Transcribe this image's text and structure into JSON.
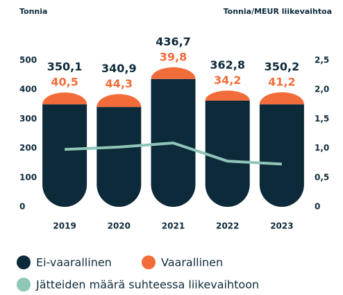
{
  "chart_data": {
    "type": "bar",
    "stacked": true,
    "y_label": "Tonnia",
    "y2_label": "Tonnia/MEUR liikevaihtoa",
    "categories": [
      "2019",
      "2020",
      "2021",
      "2022",
      "2023"
    ],
    "series": [
      {
        "name": "Ei-vaarallinen",
        "color": "#0d2a3a",
        "values": [
          350.1,
          340.9,
          436.7,
          362.8,
          350.2
        ],
        "value_labels": [
          "350,1",
          "340,9",
          "436,7",
          "362,8",
          "350,2"
        ]
      },
      {
        "name": "Vaarallinen",
        "color": "#f26c3a",
        "values": [
          40.5,
          44.3,
          39.8,
          34.2,
          41.2
        ],
        "value_labels": [
          "40,5",
          "44,3",
          "39,8",
          "34,2",
          "41,2"
        ]
      },
      {
        "name": "Jätteiden määrä suhteessa liikevaihtoon",
        "color": "#8fc6b8",
        "type": "line",
        "axis": "y2",
        "values": [
          0.98,
          1.02,
          1.09,
          0.78,
          0.73
        ]
      }
    ],
    "ylim": [
      0,
      500
    ],
    "yticks": [
      0,
      100,
      200,
      300,
      400,
      500
    ],
    "y2lim": [
      0,
      2.5
    ],
    "y2ticks": [
      {
        "value": 0,
        "label": "0"
      },
      {
        "value": 0.5,
        "label": "0,5"
      },
      {
        "value": 1.0,
        "label": "1,0"
      },
      {
        "value": 1.5,
        "label": "1,5"
      },
      {
        "value": 2.0,
        "label": "2,0"
      },
      {
        "value": 2.5,
        "label": "2,5"
      }
    ],
    "grid": false
  }
}
